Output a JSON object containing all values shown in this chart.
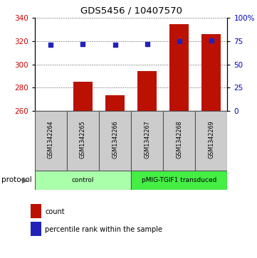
{
  "title": "GDS5456 / 10407570",
  "samples": [
    "GSM1342264",
    "GSM1342265",
    "GSM1342266",
    "GSM1342267",
    "GSM1342268",
    "GSM1342269"
  ],
  "counts": [
    260.3,
    285.0,
    273.5,
    294.5,
    335.0,
    326.0
  ],
  "percentiles": [
    71.0,
    72.0,
    71.5,
    72.0,
    75.0,
    75.5
  ],
  "baseline": 260,
  "ylim_left": [
    260,
    340
  ],
  "ylim_right": [
    0,
    100
  ],
  "yticks_left": [
    260,
    280,
    300,
    320,
    340
  ],
  "yticks_right": [
    0,
    25,
    50,
    75,
    100
  ],
  "ytick_labels_right": [
    "0",
    "25",
    "50",
    "75",
    "100%"
  ],
  "bar_color": "#bb1100",
  "dot_color": "#2222bb",
  "groups": [
    {
      "label": "control",
      "start": 0,
      "end": 3,
      "color": "#aaffaa"
    },
    {
      "label": "pMIG-TGIF1 transduced",
      "start": 3,
      "end": 6,
      "color": "#44ee44"
    }
  ],
  "legend_items": [
    {
      "label": "count",
      "color": "#bb1100"
    },
    {
      "label": "percentile rank within the sample",
      "color": "#2222bb"
    }
  ],
  "protocol_label": "protocol",
  "grid_color": "#555555",
  "tick_label_color_left": "#cc0000",
  "tick_label_color_right": "#0000cc",
  "cell_color": "#cccccc",
  "cell_edge_color": "#555555"
}
